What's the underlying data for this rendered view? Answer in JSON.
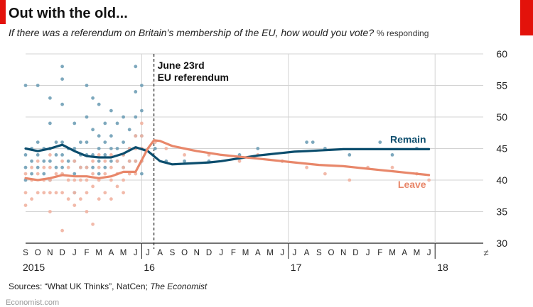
{
  "header": {
    "title": "Out with the old...",
    "subtitle": "If there was a referendum on Britain’s membership of the EU, how would you vote?",
    "units": "% responding"
  },
  "footer": {
    "sources_prefix": "Sources: “What UK Thinks”, NatCen; ",
    "sources_publication": "The Economist",
    "watermark": "Economist.com"
  },
  "colors": {
    "remain": "#0b4d6d",
    "leave": "#e8876a",
    "remain_dots": "#6f9fb6",
    "leave_dots": "#f1b3a1",
    "grid": "#d3d3d3",
    "accent": "#e3120b"
  },
  "chart_data": {
    "type": "line",
    "y_axis": {
      "position": "right",
      "ylim": [
        30,
        60
      ],
      "ticks": [
        30,
        35,
        40,
        45,
        50,
        55,
        60
      ]
    },
    "x_axis": {
      "start": "2015-09",
      "month_labels": [
        "S",
        "O",
        "N",
        "D",
        "J",
        "F",
        "M",
        "A",
        "M",
        "J",
        "J",
        "A",
        "S",
        "O",
        "N",
        "D",
        "J",
        "F",
        "M",
        "A",
        "M",
        "J",
        "J",
        "A",
        "S",
        "O",
        "N",
        "D",
        "J",
        "F",
        "M",
        "A",
        "M",
        "J"
      ],
      "year_labels": [
        {
          "label": "2015",
          "month_index": 0
        },
        {
          "label": "16",
          "month_index": 10
        },
        {
          "label": "17",
          "month_index": 22
        },
        {
          "label": "18",
          "month_index": 34
        }
      ],
      "break_symbol": "≠"
    },
    "annotation": {
      "month_index": 10.5,
      "text": [
        "June 23rd",
        "EU referendum"
      ]
    },
    "series": [
      {
        "name": "Remain",
        "trend": [
          [
            0,
            45
          ],
          [
            1,
            44.6
          ],
          [
            2,
            45
          ],
          [
            3,
            45.6
          ],
          [
            4,
            44.6
          ],
          [
            5,
            43.8
          ],
          [
            6,
            43.6
          ],
          [
            7,
            43.6
          ],
          [
            8,
            44.2
          ],
          [
            9,
            45.2
          ],
          [
            10,
            44.6
          ],
          [
            11,
            43
          ],
          [
            12,
            42.5
          ],
          [
            13,
            42.6
          ],
          [
            14,
            42.7
          ],
          [
            15,
            42.8
          ],
          [
            16,
            43
          ],
          [
            17,
            43.3
          ],
          [
            18,
            43.6
          ],
          [
            19,
            43.9
          ],
          [
            20,
            44.1
          ],
          [
            21,
            44.3
          ],
          [
            22,
            44.5
          ],
          [
            23,
            44.6
          ],
          [
            24,
            44.7
          ],
          [
            25,
            44.8
          ],
          [
            26,
            44.9
          ],
          [
            27,
            44.9
          ],
          [
            28,
            44.9
          ],
          [
            29,
            44.9
          ],
          [
            30,
            44.9
          ],
          [
            31,
            44.9
          ],
          [
            32,
            44.9
          ],
          [
            33,
            44.9
          ]
        ],
        "points": [
          [
            0,
            55
          ],
          [
            0,
            44
          ],
          [
            0,
            42
          ],
          [
            0,
            40
          ],
          [
            0.5,
            45
          ],
          [
            0.5,
            43
          ],
          [
            0.5,
            41
          ],
          [
            1,
            55
          ],
          [
            1,
            46
          ],
          [
            1,
            44
          ],
          [
            1,
            42
          ],
          [
            1.5,
            45
          ],
          [
            1.5,
            43
          ],
          [
            1.5,
            41
          ],
          [
            2,
            53
          ],
          [
            2,
            49
          ],
          [
            2,
            45
          ],
          [
            2,
            43
          ],
          [
            2,
            40
          ],
          [
            2.5,
            46
          ],
          [
            2.5,
            44
          ],
          [
            2.5,
            42
          ],
          [
            3,
            58
          ],
          [
            3,
            56
          ],
          [
            3,
            52
          ],
          [
            3,
            46
          ],
          [
            3,
            44
          ],
          [
            3,
            42
          ],
          [
            3.5,
            45
          ],
          [
            3.5,
            43
          ],
          [
            4,
            49
          ],
          [
            4,
            45
          ],
          [
            4,
            43
          ],
          [
            4,
            41
          ],
          [
            4,
            38
          ],
          [
            4.5,
            46
          ],
          [
            4.5,
            44
          ],
          [
            4.5,
            42
          ],
          [
            5,
            55
          ],
          [
            5,
            50
          ],
          [
            5,
            46
          ],
          [
            5,
            44
          ],
          [
            5,
            42
          ],
          [
            5.5,
            53
          ],
          [
            5.5,
            48
          ],
          [
            5.5,
            44
          ],
          [
            5.5,
            42
          ],
          [
            6,
            52
          ],
          [
            6,
            47
          ],
          [
            6,
            45
          ],
          [
            6,
            43
          ],
          [
            6,
            41
          ],
          [
            6.5,
            49
          ],
          [
            6.5,
            46
          ],
          [
            6.5,
            44
          ],
          [
            6.5,
            42
          ],
          [
            7,
            51
          ],
          [
            7,
            47
          ],
          [
            7,
            45
          ],
          [
            7,
            43
          ],
          [
            7.5,
            49
          ],
          [
            7.5,
            45
          ],
          [
            7.5,
            43
          ],
          [
            8,
            50
          ],
          [
            8,
            46
          ],
          [
            8,
            44
          ],
          [
            8,
            42
          ],
          [
            8.5,
            48
          ],
          [
            8.5,
            45
          ],
          [
            8.5,
            43
          ],
          [
            9,
            58
          ],
          [
            9,
            54
          ],
          [
            9,
            50
          ],
          [
            9,
            47
          ],
          [
            9,
            45
          ],
          [
            9,
            43
          ],
          [
            9.5,
            55
          ],
          [
            9.5,
            51
          ],
          [
            9.5,
            47
          ],
          [
            9.5,
            45
          ],
          [
            9.5,
            43
          ],
          [
            9.5,
            41
          ],
          [
            10.6,
            45
          ],
          [
            11.5,
            43
          ],
          [
            13,
            43
          ],
          [
            15,
            43
          ],
          [
            17.5,
            44
          ],
          [
            19,
            45
          ],
          [
            21,
            43
          ],
          [
            23,
            46
          ],
          [
            23.5,
            46
          ],
          [
            24.5,
            45
          ],
          [
            26.5,
            44
          ],
          [
            29,
            46
          ],
          [
            30,
            44
          ],
          [
            32,
            45
          ]
        ]
      },
      {
        "name": "Leave",
        "trend": [
          [
            0,
            40.3
          ],
          [
            1,
            40
          ],
          [
            2,
            40.3
          ],
          [
            3,
            40.8
          ],
          [
            4,
            40.6
          ],
          [
            5,
            40.6
          ],
          [
            6,
            40.3
          ],
          [
            7,
            40.6
          ],
          [
            8,
            41.3
          ],
          [
            9,
            41.3
          ],
          [
            10,
            45
          ],
          [
            10.5,
            46.3
          ],
          [
            11,
            46.2
          ],
          [
            12,
            45.4
          ],
          [
            13,
            45
          ],
          [
            14,
            44.6
          ],
          [
            15,
            44.3
          ],
          [
            16,
            44
          ],
          [
            17,
            43.8
          ],
          [
            18,
            43.6
          ],
          [
            19,
            43.4
          ],
          [
            20,
            43.2
          ],
          [
            21,
            43
          ],
          [
            22,
            42.8
          ],
          [
            23,
            42.6
          ],
          [
            24,
            42.4
          ],
          [
            25,
            42.3
          ],
          [
            26,
            42.2
          ],
          [
            27,
            42
          ],
          [
            28,
            41.8
          ],
          [
            29,
            41.6
          ],
          [
            30,
            41.4
          ],
          [
            31,
            41.2
          ],
          [
            32,
            41
          ],
          [
            33,
            40.8
          ]
        ],
        "points": [
          [
            0,
            41
          ],
          [
            0,
            38
          ],
          [
            0,
            36
          ],
          [
            0.5,
            42
          ],
          [
            0.5,
            40
          ],
          [
            0.5,
            37
          ],
          [
            1,
            43
          ],
          [
            1,
            41
          ],
          [
            1,
            38
          ],
          [
            1.5,
            42
          ],
          [
            1.5,
            40
          ],
          [
            1.5,
            38
          ],
          [
            2,
            44
          ],
          [
            2,
            42
          ],
          [
            2,
            40
          ],
          [
            2,
            38
          ],
          [
            2,
            35
          ],
          [
            2.5,
            41
          ],
          [
            2.5,
            38
          ],
          [
            3,
            43
          ],
          [
            3,
            41
          ],
          [
            3,
            38
          ],
          [
            3,
            32
          ],
          [
            3.5,
            42
          ],
          [
            3.5,
            40
          ],
          [
            3.5,
            37
          ],
          [
            4,
            43
          ],
          [
            4,
            40
          ],
          [
            4,
            38
          ],
          [
            4,
            36
          ],
          [
            4.5,
            42
          ],
          [
            4.5,
            40
          ],
          [
            4.5,
            37
          ],
          [
            5,
            42
          ],
          [
            5,
            40
          ],
          [
            5,
            38
          ],
          [
            5,
            35
          ],
          [
            5.5,
            43
          ],
          [
            5.5,
            41
          ],
          [
            5.5,
            39
          ],
          [
            5.5,
            33
          ],
          [
            6,
            44
          ],
          [
            6,
            42
          ],
          [
            6,
            40
          ],
          [
            6,
            37
          ],
          [
            6.5,
            43
          ],
          [
            6.5,
            41
          ],
          [
            6.5,
            38
          ],
          [
            7,
            44
          ],
          [
            7,
            42
          ],
          [
            7,
            40
          ],
          [
            7,
            37
          ],
          [
            7.5,
            43
          ],
          [
            7.5,
            41
          ],
          [
            7.5,
            39
          ],
          [
            8,
            44
          ],
          [
            8,
            42
          ],
          [
            8,
            40
          ],
          [
            8,
            38
          ],
          [
            8.5,
            45
          ],
          [
            8.5,
            43
          ],
          [
            8.5,
            41
          ],
          [
            9,
            47
          ],
          [
            9,
            45
          ],
          [
            9,
            43
          ],
          [
            9,
            41
          ],
          [
            9.5,
            49
          ],
          [
            9.5,
            47
          ],
          [
            9.5,
            45
          ],
          [
            9.5,
            43
          ],
          [
            10.6,
            46
          ],
          [
            11.5,
            45
          ],
          [
            13,
            44
          ],
          [
            15,
            44
          ],
          [
            17.5,
            43
          ],
          [
            19,
            44
          ],
          [
            21,
            43
          ],
          [
            23,
            42
          ],
          [
            24.5,
            41
          ],
          [
            26.5,
            40
          ],
          [
            28,
            42
          ],
          [
            30,
            42
          ],
          [
            32,
            41
          ],
          [
            33,
            40
          ]
        ]
      }
    ],
    "series_labels": [
      {
        "series": "Remain",
        "text": "Remain"
      },
      {
        "series": "Leave",
        "text": "Leave"
      }
    ],
    "grid": true
  }
}
